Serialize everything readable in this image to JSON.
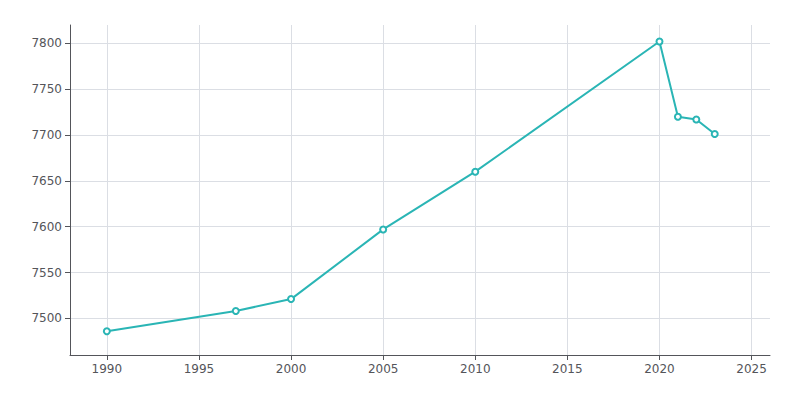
{
  "chart_data": {
    "type": "line",
    "x": [
      1990,
      1997,
      2000,
      2005,
      2010,
      2020,
      2021,
      2022,
      2023
    ],
    "values": [
      7486,
      7508,
      7521,
      7597,
      7660,
      7802,
      7720,
      7717,
      7701
    ],
    "color": "#2ab5b5",
    "xlim": [
      1988,
      2026
    ],
    "ylim": [
      7460,
      7820
    ],
    "xticks": [
      1990,
      1995,
      2000,
      2005,
      2010,
      2015,
      2020,
      2025
    ],
    "yticks": [
      7500,
      7550,
      7600,
      7650,
      7700,
      7750,
      7800
    ],
    "grid": true
  }
}
